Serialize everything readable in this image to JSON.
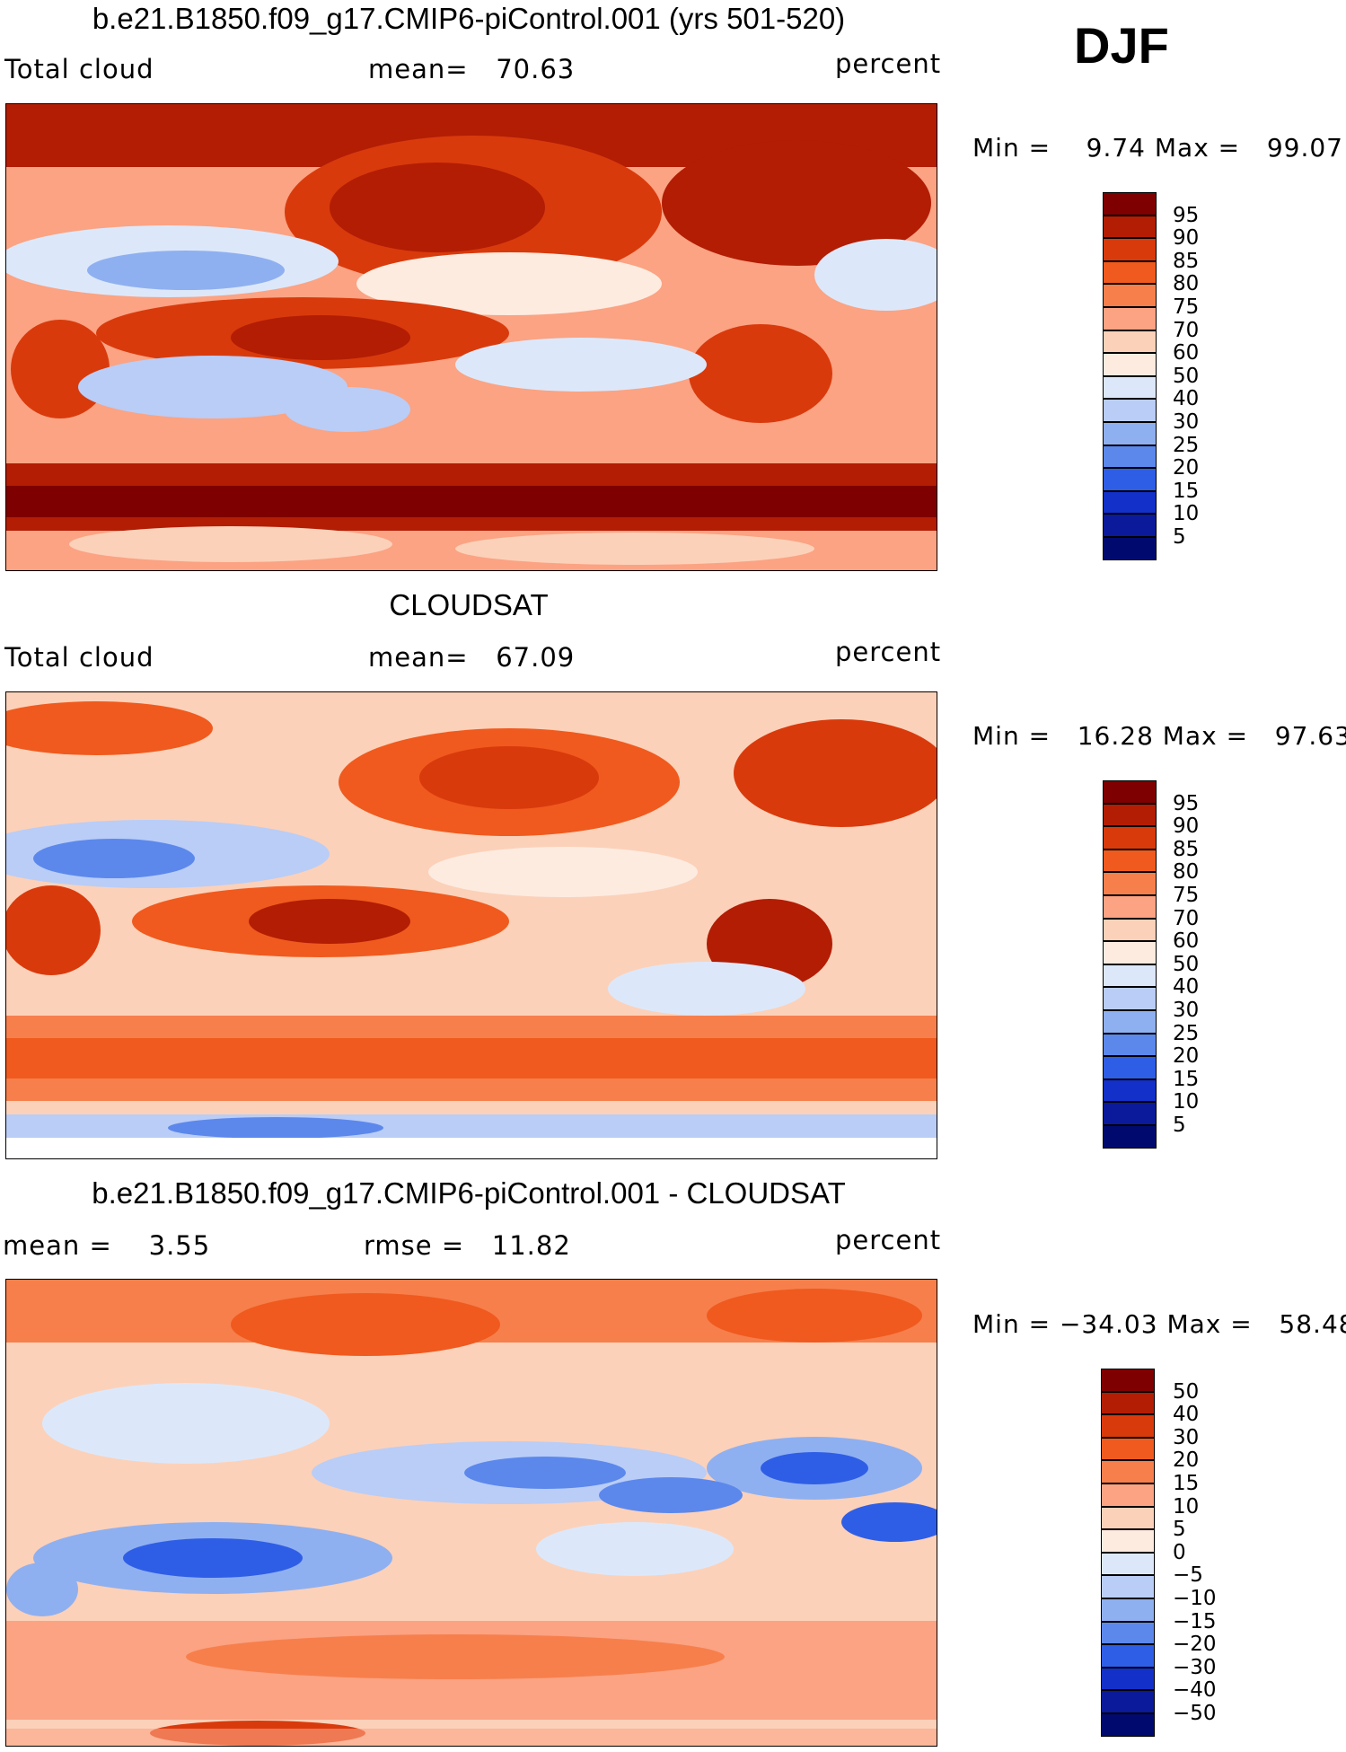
{
  "season": "DJF",
  "panels": [
    {
      "title": "b.e21.B1850.f09_g17.CMIP6-piControl.001 (yrs 501-520)",
      "left_label": "Total cloud",
      "center_label": "mean=   70.63",
      "units": "percent",
      "min_max": "Min =    9.74 Max =   99.07",
      "colorbar_labels": [
        "95",
        "90",
        "85",
        "80",
        "75",
        "70",
        "60",
        "50",
        "40",
        "30",
        "25",
        "20",
        "15",
        "10",
        "5"
      ]
    },
    {
      "title": "CLOUDSAT",
      "left_label": "Total cloud",
      "center_label": "mean=   67.09",
      "units": "percent",
      "min_max": "Min =   16.28 Max =   97.63",
      "colorbar_labels": [
        "95",
        "90",
        "85",
        "80",
        "75",
        "70",
        "60",
        "50",
        "40",
        "30",
        "25",
        "20",
        "15",
        "10",
        "5"
      ]
    },
    {
      "title": "b.e21.B1850.f09_g17.CMIP6-piControl.001 - CLOUDSAT",
      "left_label": "mean =    3.55",
      "center_label": "rmse =   11.82",
      "units": "percent",
      "min_max": "Min = −34.03 Max =   58.48",
      "colorbar_labels": [
        "50",
        "40",
        "30",
        "20",
        "15",
        "10",
        "5",
        "0",
        "−5",
        "−10",
        "−15",
        "−20",
        "−30",
        "−40",
        "−50"
      ]
    }
  ],
  "colors": {
    "palette": [
      "#7f0000",
      "#b21d04",
      "#d93a0c",
      "#f05a1e",
      "#f77f4c",
      "#fba383",
      "#fcd1b9",
      "#fdebe0",
      "#dce8fa",
      "#b9cdf7",
      "#8fb0f0",
      "#5c88ec",
      "#2f5ee6",
      "#1330c8",
      "#0a1a9b",
      "#000a6e"
    ]
  }
}
